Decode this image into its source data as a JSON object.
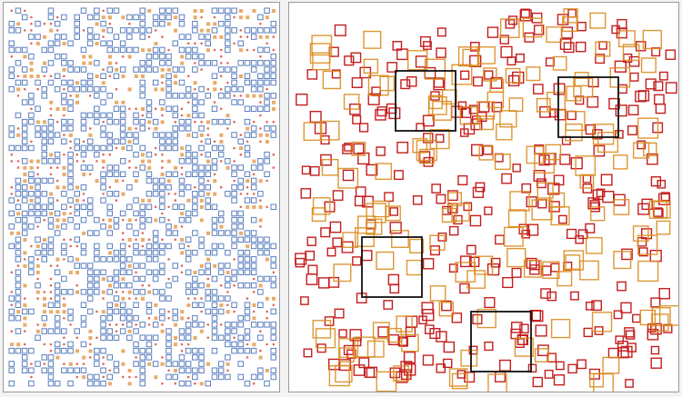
{
  "colors": {
    "background": "#f3f3f3",
    "panel_fill": "#ffffff",
    "panel_border": "#9a9a9a",
    "blue_square": "#5b7fbf",
    "orange_square": "#e8a25a",
    "red_dot": "#e06a5a",
    "red_square": "#c41e1e",
    "gold_square": "#d98c1f",
    "highlight_box": "#111111"
  },
  "left_panel": {
    "marks": [
      "blue-outline-square",
      "orange-filled-square",
      "red-dot"
    ]
  },
  "right_panel": {
    "marks": [
      "red-outline-square",
      "orange-outline-square",
      "black-highlight-box"
    ],
    "highlight_box_count": 4
  }
}
